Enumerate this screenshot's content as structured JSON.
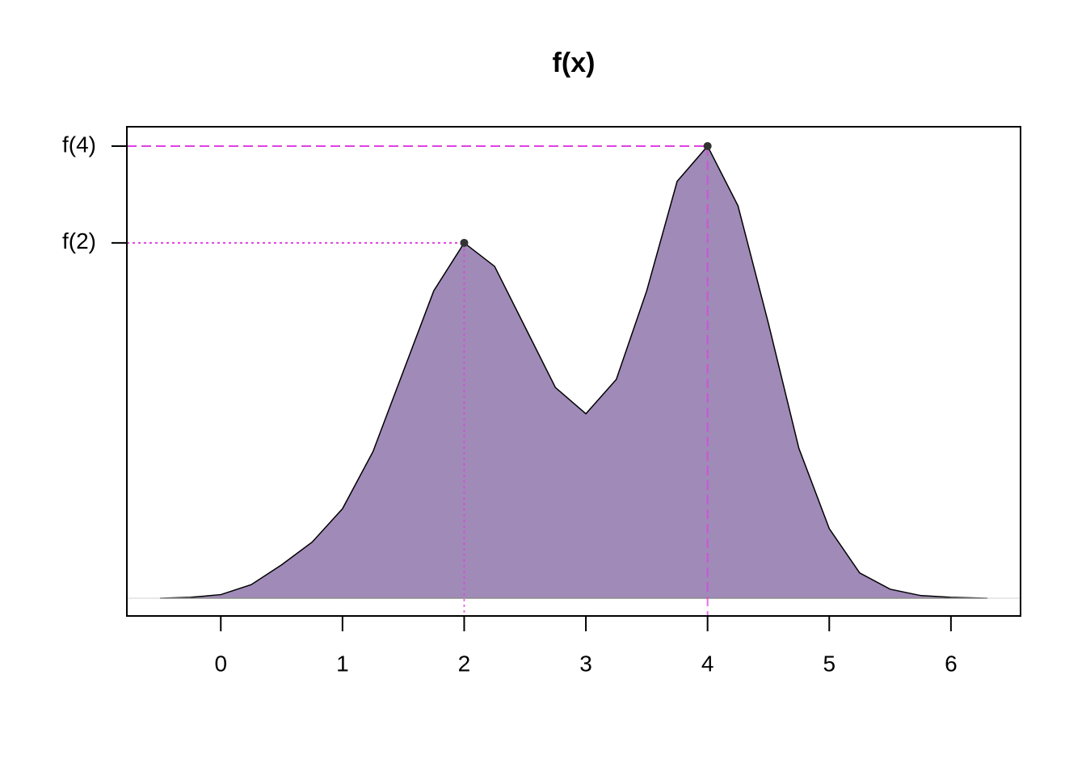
{
  "chart_data": {
    "type": "area",
    "title": "f(x)",
    "x": [
      -0.5,
      -0.25,
      0,
      0.25,
      0.5,
      0.75,
      1.0,
      1.25,
      1.5,
      1.75,
      2.0,
      2.25,
      2.5,
      2.75,
      3.0,
      3.25,
      3.5,
      3.75,
      4.0,
      4.25,
      4.5,
      4.75,
      5.0,
      5.25,
      5.5,
      5.75,
      6.0,
      6.3
    ],
    "values": [
      0.0,
      0.001,
      0.004,
      0.015,
      0.037,
      0.062,
      0.099,
      0.162,
      0.251,
      0.34,
      0.393,
      0.367,
      0.3,
      0.233,
      0.204,
      0.242,
      0.34,
      0.461,
      0.5,
      0.434,
      0.304,
      0.166,
      0.077,
      0.028,
      0.01,
      0.003,
      0.001,
      0.0
    ],
    "color": "#a08ab8",
    "markers": {
      "x": [
        2,
        4
      ],
      "values": [
        0.393,
        0.5
      ],
      "color": "#e040e0"
    },
    "xlim": [
      -0.772,
      6.572
    ],
    "ylim": [
      -0.0196,
      0.5214
    ],
    "xticks": [
      0,
      1,
      2,
      3,
      4,
      5,
      6
    ],
    "yticks": [
      {
        "value": 0.393,
        "label": "f(2)"
      },
      {
        "value": 0.5,
        "label": "f(4)"
      }
    ]
  }
}
